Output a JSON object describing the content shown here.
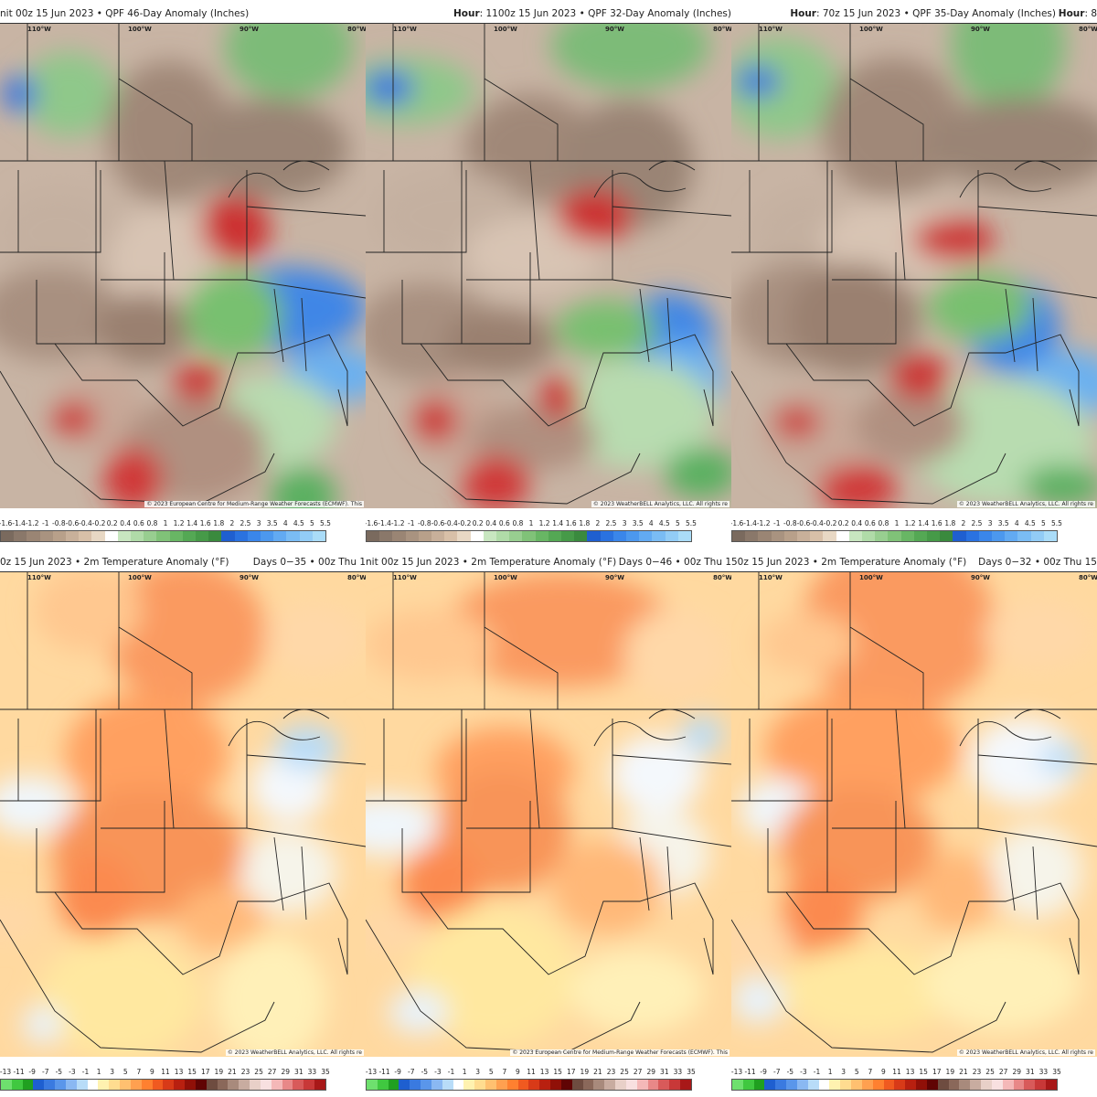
{
  "panels": [
    {
      "id": "qpf-46",
      "variable": "qpf",
      "header_left": "nit 00z 15 Jun 2023 • QPF 46-Day Anomaly (Inches)",
      "header_right": "",
      "credit": "© 2023 European Centre for Medium-Range Weather Forecasts (ECMWF). This"
    },
    {
      "id": "qpf-32",
      "variable": "qpf",
      "header_left": "",
      "header_right_bold": "Hour",
      "header_right": ": 1100z 15 Jun 2023 • QPF 32-Day Anomaly (Inches)",
      "credit": "© 2023 WeatherBELL Analytics, LLC. All rights re"
    },
    {
      "id": "qpf-35",
      "variable": "qpf",
      "header_left": "",
      "header_right_bold": "Hour",
      "header_right": ": 70z 15 Jun 2023 • QPF 35-Day Anomaly (Inches)",
      "header_far_bold": "Hour",
      "header_far": ": 8",
      "credit": "© 2023 WeatherBELL Analytics, LLC. All rights re"
    },
    {
      "id": "t2m-35",
      "variable": "temp",
      "header_left": "0z 15 Jun 2023 • 2m Temperature Anomaly (°F)",
      "header_right": "Days 0−35 • 00z Thu 1",
      "credit": "© 2023 WeatherBELL Analytics, LLC. All rights re"
    },
    {
      "id": "t2m-46",
      "variable": "temp",
      "header_left": "nit 00z 15 Jun 2023 • 2m Temperature Anomaly (°F)",
      "header_right": "Days 0−46 • 00z Thu 1",
      "credit": "© 2023 European Centre for Medium-Range Weather Forecasts (ECMWF). This"
    },
    {
      "id": "t2m-32",
      "variable": "temp",
      "header_left": "50z 15 Jun 2023 • 2m Temperature Anomaly (°F)",
      "header_right": "Days 0−32 • 00z Thu 15",
      "credit": "© 2023 WeatherBELL Analytics, LLC. All rights re"
    }
  ],
  "longitude_labels": [
    "110°W",
    "100°W",
    "90°W",
    "80°W"
  ],
  "colorbars": {
    "qpf": {
      "labels": [
        "-1.6",
        "-1.4",
        "-1.2",
        "-1",
        "-0.8",
        "-0.6",
        "-0.4",
        "-0.2",
        "0.2",
        "0.4",
        "0.6",
        "0.8",
        "1",
        "1.2",
        "1.4",
        "1.6",
        "1.8",
        "2",
        "2.5",
        "3",
        "3.5",
        "4",
        "4.5",
        "5",
        "5.5"
      ],
      "colors": [
        "#7a6a5e",
        "#8a786a",
        "#9a8574",
        "#a99380",
        "#b8a08a",
        "#c8b09a",
        "#d8c0a8",
        "#e8d8c4",
        "#ffffff",
        "#c8e6c0",
        "#b0dba8",
        "#98ce90",
        "#80c278",
        "#68b664",
        "#54a854",
        "#469a48",
        "#3a8a3e",
        "#1f5fd0",
        "#2a72e0",
        "#3a86ea",
        "#4c98ee",
        "#62aaf2",
        "#7abcf4",
        "#92ccf6",
        "#aadcf8"
      ]
    },
    "temp": {
      "labels": [
        "-13",
        "-11",
        "-9",
        "-7",
        "-5",
        "-3",
        "-1",
        "1",
        "3",
        "5",
        "7",
        "9",
        "11",
        "13",
        "15",
        "17",
        "19",
        "21",
        "23",
        "25",
        "27",
        "29",
        "31",
        "33",
        "35"
      ],
      "colors": [
        "#6ee06e",
        "#40c840",
        "#20a020",
        "#1e5fd0",
        "#3a7ae0",
        "#5a96ea",
        "#8ab8f2",
        "#b8dcf8",
        "#ffffff",
        "#fff2b0",
        "#ffdc90",
        "#ffc070",
        "#ffa050",
        "#ff8030",
        "#f05a20",
        "#d83a18",
        "#b82010",
        "#901008",
        "#600404",
        "#6e4c40",
        "#8a685a",
        "#a88a7c",
        "#c8aca0",
        "#e8d0c8",
        "#f8e0e0",
        "#f4b8b8",
        "#e88888",
        "#d85a5a",
        "#c83838",
        "#a81818"
      ]
    }
  }
}
